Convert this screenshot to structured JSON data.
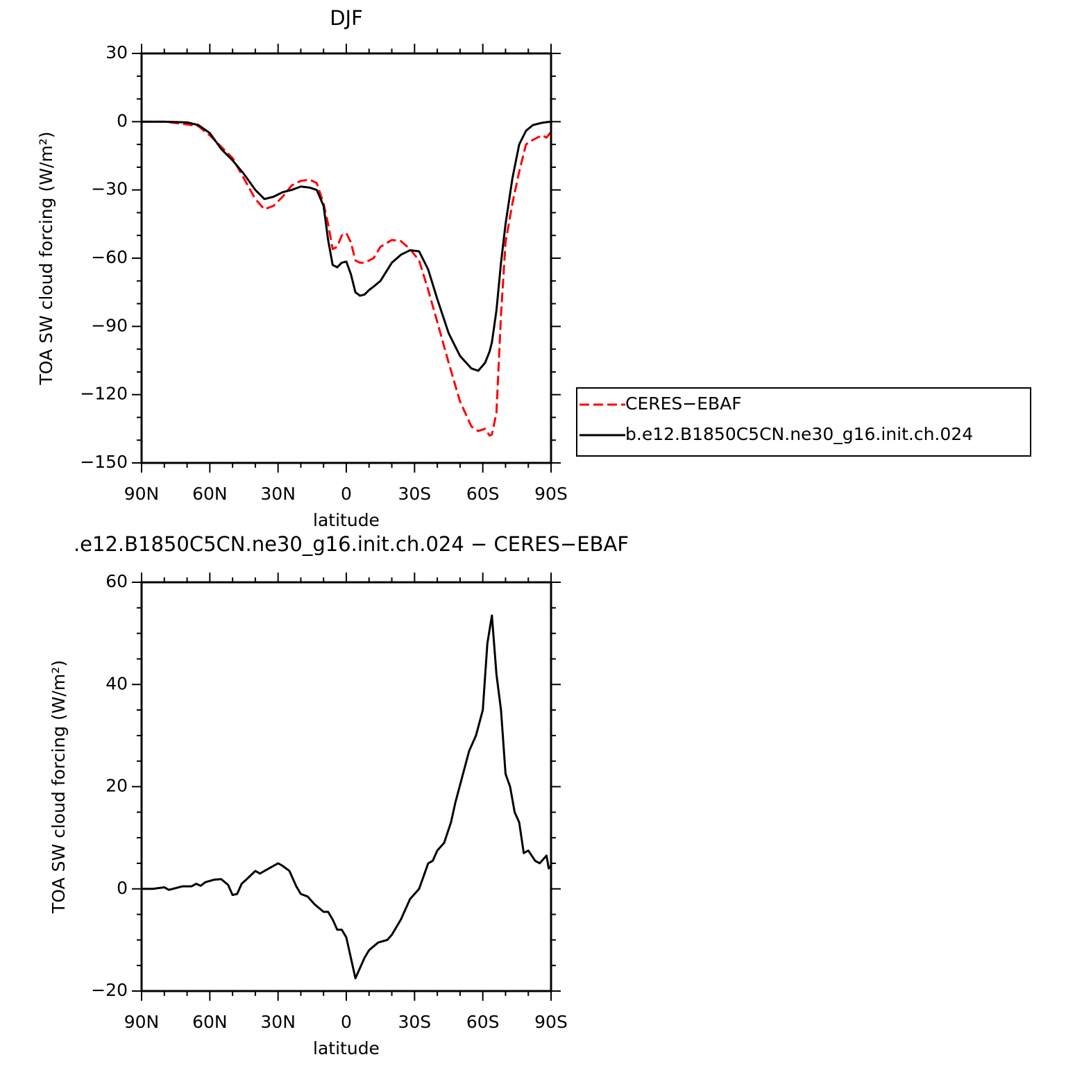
{
  "chart_data": [
    {
      "type": "line",
      "title": "DJF",
      "xlabel": "latitude",
      "ylabel": "TOA SW cloud forcing (W/m²)",
      "x": [
        90,
        80,
        70,
        65,
        60,
        55,
        50,
        45,
        40,
        36,
        32,
        28,
        24,
        20,
        16,
        13,
        10,
        8,
        6,
        4,
        2,
        0,
        -2,
        -4,
        -6,
        -8,
        -10,
        -12,
        -15,
        -20,
        -24,
        -28,
        -32,
        -36,
        -40,
        -45,
        -50,
        -55,
        -58,
        -61,
        -63,
        -64,
        -66,
        -68,
        -70,
        -73,
        -76,
        -79,
        -82,
        -86,
        -88,
        -90
      ],
      "xlim": [
        90,
        -90
      ],
      "xticks": [
        {
          "value": 90,
          "label": "90N"
        },
        {
          "value": 60,
          "label": "60N"
        },
        {
          "value": 30,
          "label": "30N"
        },
        0,
        {
          "value": -30,
          "label": "30S"
        },
        {
          "value": -60,
          "label": "60S"
        },
        {
          "value": -90,
          "label": "90S"
        }
      ],
      "ylim": [
        -150,
        30
      ],
      "yticks": [
        30,
        0,
        {
          "value": -30,
          "label": "−30"
        },
        {
          "value": -60,
          "label": "−60"
        },
        {
          "value": -90,
          "label": "−90"
        },
        {
          "value": -120,
          "label": "−120"
        },
        {
          "value": -150,
          "label": "−150"
        }
      ],
      "legend": "right",
      "series": [
        {
          "name": "CERES−EBAF",
          "color": "#ff0000",
          "linestyle": "dashed",
          "values": [
            0,
            0,
            -1.2,
            -2,
            -6,
            -11,
            -16,
            -25,
            -34,
            -38.5,
            -37,
            -33,
            -28,
            -26,
            -25.5,
            -27,
            -36,
            -45,
            -56,
            -55,
            -50,
            -49,
            -53,
            -61,
            -62,
            -62,
            -61,
            -60,
            -55,
            -52,
            -52.5,
            -56,
            -61,
            -74,
            -88,
            -106,
            -123,
            -134,
            -136,
            -135,
            -138,
            -137.5,
            -128,
            -85,
            -53,
            -36,
            -22,
            -10,
            -8,
            -6,
            -7,
            -4.5
          ]
        },
        {
          "name": "b.e12.B1850C5CN.ne30_g16.init.ch.024",
          "color": "#000000",
          "linestyle": "solid",
          "values": [
            0,
            0,
            -0.3,
            -1.5,
            -5,
            -12,
            -17,
            -23,
            -30,
            -34,
            -33,
            -31,
            -30,
            -28.5,
            -29,
            -30,
            -37,
            -52,
            -63,
            -64,
            -62,
            -61.5,
            -67,
            -75,
            -76.5,
            -76,
            -74,
            -72.5,
            -70,
            -62,
            -58.5,
            -56.5,
            -57,
            -65,
            -78,
            -93,
            -103,
            -108.5,
            -109.5,
            -106,
            -101,
            -97,
            -83,
            -62,
            -45,
            -25,
            -10,
            -4,
            -1.5,
            -0.5,
            -0.2,
            0
          ]
        }
      ]
    },
    {
      "type": "line",
      "title": ".e12.B1850C5CN.ne30_g16.init.ch.024 − CERES−EBAF",
      "xlabel": "latitude",
      "ylabel": "TOA SW cloud forcing (W/m²)",
      "x": [
        90,
        85,
        80,
        78,
        72,
        68,
        66,
        64,
        62,
        58,
        55,
        52,
        50,
        48,
        46,
        44,
        40,
        38,
        34,
        30,
        28,
        25,
        22,
        20,
        17,
        14,
        10,
        8,
        6,
        4,
        2,
        0,
        -2,
        -4,
        -6,
        -8,
        -10,
        -14,
        -18,
        -20,
        -24,
        -28,
        -30,
        -32,
        -34,
        -36,
        -38,
        -40,
        -43,
        -46,
        -48,
        -51,
        -54,
        -57,
        -60,
        -62,
        -64,
        -66,
        -68,
        -70,
        -72,
        -74,
        -76,
        -78,
        -80,
        -83,
        -85,
        -88,
        -89,
        -90
      ],
      "xlim": [
        90,
        -90
      ],
      "xticks": [
        {
          "value": 90,
          "label": "90N"
        },
        {
          "value": 60,
          "label": "60N"
        },
        {
          "value": 30,
          "label": "30N"
        },
        0,
        {
          "value": -30,
          "label": "30S"
        },
        {
          "value": -60,
          "label": "60S"
        },
        {
          "value": -90,
          "label": "90S"
        }
      ],
      "ylim": [
        -20,
        60
      ],
      "yticks": [
        60,
        40,
        20,
        0,
        {
          "value": -20,
          "label": "−20"
        }
      ],
      "series": [
        {
          "color": "#000000",
          "linestyle": "solid",
          "values": [
            0,
            0,
            0.3,
            -0.2,
            0.5,
            0.5,
            1,
            0.6,
            1.3,
            1.8,
            1.9,
            0.8,
            -1.2,
            -1,
            1,
            1.8,
            3.5,
            3,
            4,
            5,
            4.5,
            3.5,
            0.5,
            -1,
            -1.5,
            -3,
            -4.5,
            -4.5,
            -6,
            -8,
            -8,
            -9.5,
            -13.5,
            -17.5,
            -15.5,
            -13.5,
            -12,
            -10.5,
            -10,
            -9,
            -6,
            -2,
            -1,
            0,
            2.5,
            5,
            5.5,
            7.5,
            9,
            13,
            17,
            22,
            27,
            30,
            35,
            48,
            53.5,
            42,
            35,
            22.5,
            20,
            15,
            13,
            7,
            7.5,
            5.5,
            5,
            6.5,
            4,
            4.5
          ]
        }
      ]
    }
  ]
}
